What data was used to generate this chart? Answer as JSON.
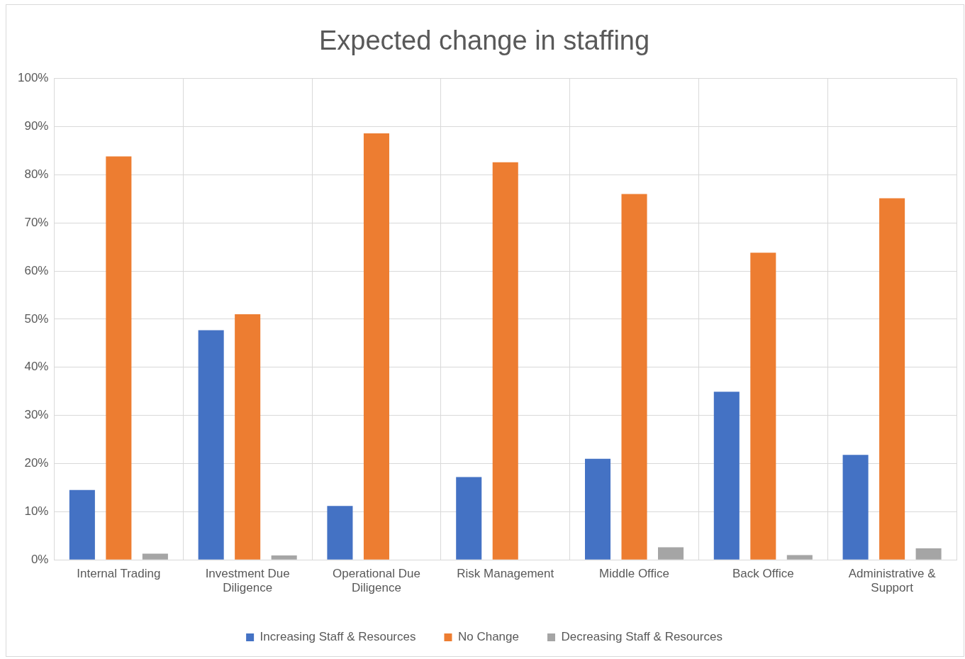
{
  "chart_data": {
    "type": "bar",
    "title": "Expected change in staffing",
    "categories": [
      "Internal Trading",
      "Investment Due Diligence",
      "Operational Due Diligence",
      "Risk Management",
      "Middle Office",
      "Back Office",
      "Administrative & Support"
    ],
    "series": [
      {
        "name": "Increasing Staff & Resources",
        "color": "#4472c4",
        "values": [
          14.5,
          47.7,
          11.2,
          17.2,
          21.0,
          34.9,
          21.8
        ]
      },
      {
        "name": "No Change",
        "color": "#ed7d31",
        "values": [
          83.8,
          51.0,
          88.6,
          82.6,
          76.0,
          63.8,
          75.1
        ]
      },
      {
        "name": "Decreasing Staff & Resources",
        "color": "#a5a5a5",
        "values": [
          1.3,
          0.9,
          0,
          0,
          2.6,
          1.0,
          2.4
        ]
      }
    ],
    "ylim": [
      0,
      100
    ],
    "yticks": [
      {
        "value": 0,
        "label": "0%"
      },
      {
        "value": 10,
        "label": "10%"
      },
      {
        "value": 20,
        "label": "20%"
      },
      {
        "value": 30,
        "label": "30%"
      },
      {
        "value": 40,
        "label": "40%"
      },
      {
        "value": 50,
        "label": "50%"
      },
      {
        "value": 60,
        "label": "60%"
      },
      {
        "value": 70,
        "label": "70%"
      },
      {
        "value": 80,
        "label": "80%"
      },
      {
        "value": 90,
        "label": "90%"
      },
      {
        "value": 100,
        "label": "100%"
      }
    ],
    "grid": true,
    "legend": "bottom"
  }
}
